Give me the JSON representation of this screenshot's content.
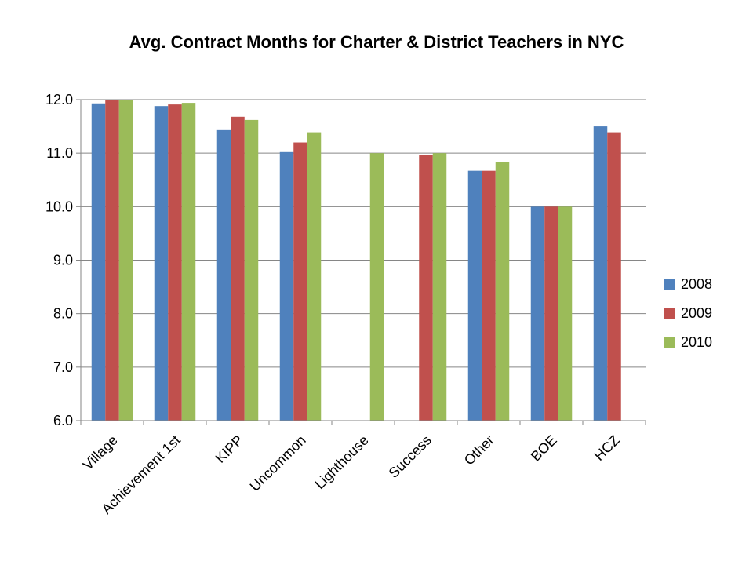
{
  "chart_data": {
    "type": "bar",
    "title": "Avg. Contract Months for Charter & District Teachers in NYC",
    "xlabel": "",
    "ylabel": "",
    "ylim": [
      6.0,
      12.0
    ],
    "yticks": [
      "6.0",
      "7.0",
      "8.0",
      "9.0",
      "10.0",
      "11.0",
      "12.0"
    ],
    "categories": [
      "Village",
      "Achievement 1st",
      "KIPP",
      "Uncommon",
      "Lighthouse",
      "Success",
      "Other",
      "BOE",
      "HCZ"
    ],
    "series": [
      {
        "name": "2008",
        "color": "#4F81BD",
        "values": [
          11.93,
          11.88,
          11.43,
          11.02,
          null,
          null,
          10.67,
          10.0,
          11.5
        ]
      },
      {
        "name": "2009",
        "color": "#C0504D",
        "values": [
          12.0,
          11.91,
          11.68,
          11.2,
          null,
          10.96,
          10.67,
          10.0,
          11.39
        ]
      },
      {
        "name": "2010",
        "color": "#9BBB59",
        "values": [
          12.0,
          11.94,
          11.62,
          11.39,
          11.0,
          11.0,
          10.83,
          10.0,
          null
        ]
      }
    ],
    "grid": true,
    "legend_position": "right"
  }
}
